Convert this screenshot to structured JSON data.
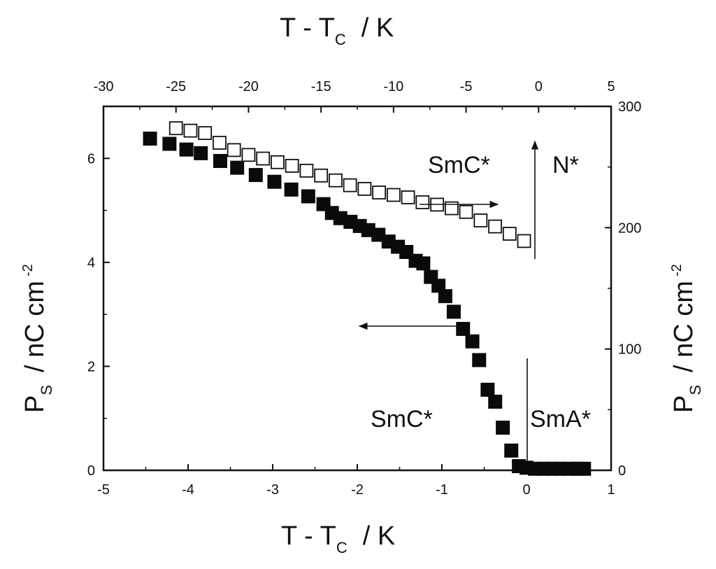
{
  "chart_data": {
    "type": "scatter",
    "title": "",
    "x_bottom": {
      "label_main": "T - T",
      "label_sub": "C",
      "label_unit": "/   K",
      "range": [
        -5,
        1
      ],
      "ticks": [
        "-5",
        "-4",
        "-3",
        "-2",
        "-1",
        "0",
        "1"
      ],
      "tick_values": [
        -5,
        -4,
        -3,
        -2,
        -1,
        0,
        1
      ]
    },
    "x_top": {
      "label_main": "T - T",
      "label_sub": "C",
      "label_unit": "/   K",
      "range": [
        -30,
        5
      ],
      "ticks": [
        "-30",
        "-25",
        "-20",
        "-15",
        "-10",
        "-5",
        "0",
        "5"
      ],
      "tick_values": [
        -30,
        -25,
        -20,
        -15,
        -10,
        -5,
        0,
        5
      ]
    },
    "y_left": {
      "label_main": "P",
      "label_sub": "S",
      "label_unit": "/   nC cm",
      "label_sup": "-2",
      "range": [
        0,
        7
      ],
      "ticks": [
        "0",
        "2",
        "4",
        "6"
      ],
      "tick_values": [
        0,
        2,
        4,
        6
      ]
    },
    "y_right": {
      "label_main": "P",
      "label_sub": "S",
      "label_unit": "/   nC cm",
      "label_sup": "-2",
      "range": [
        0,
        300
      ],
      "ticks": [
        "0",
        "100",
        "200",
        "300"
      ],
      "tick_values": [
        0,
        100,
        200,
        300
      ]
    },
    "series": [
      {
        "marker": "filled-square",
        "axes": "bottom-left",
        "x": [
          -4.45,
          -4.22,
          -4.02,
          -3.85,
          -3.62,
          -3.42,
          -3.2,
          -2.98,
          -2.78,
          -2.58,
          -2.4,
          -2.3,
          -2.2,
          -2.08,
          -1.97,
          -1.87,
          -1.75,
          -1.63,
          -1.52,
          -1.42,
          -1.31,
          -1.22,
          -1.13,
          -1.04,
          -0.96,
          -0.86,
          -0.75,
          -0.64,
          -0.56,
          -0.46,
          -0.37,
          -0.28,
          -0.18,
          -0.09,
          0.0,
          0.1,
          0.2,
          0.3,
          0.4,
          0.5,
          0.6,
          0.68
        ],
        "y": [
          6.38,
          6.28,
          6.17,
          6.1,
          5.95,
          5.82,
          5.68,
          5.55,
          5.4,
          5.27,
          5.12,
          4.95,
          4.85,
          4.78,
          4.7,
          4.62,
          4.53,
          4.4,
          4.3,
          4.2,
          4.03,
          3.98,
          3.72,
          3.55,
          3.35,
          3.05,
          2.72,
          2.48,
          2.12,
          1.55,
          1.32,
          0.82,
          0.38,
          0.08,
          0.05,
          0.03,
          0.03,
          0.03,
          0.03,
          0.03,
          0.03,
          0.03
        ]
      },
      {
        "marker": "open-square",
        "axes": "top-right",
        "x": [
          -25.0,
          -24.0,
          -23.0,
          -22.0,
          -21.0,
          -20.0,
          -19.0,
          -18.0,
          -17.0,
          -16.0,
          -15.0,
          -14.0,
          -13.0,
          -12.0,
          -11.0,
          -10.0,
          -9.0,
          -8.0,
          -7.0,
          -6.0,
          -5.0,
          -4.0,
          -3.0,
          -2.0,
          -1.0
        ],
        "y": [
          282,
          280,
          278,
          270,
          264,
          260,
          257,
          254,
          251,
          247,
          243,
          239,
          235,
          232,
          229,
          227,
          225,
          221,
          219,
          216,
          213,
          206,
          201,
          195,
          189
        ]
      }
    ],
    "annotations": {
      "smc_top": "SmC*",
      "nstar": "N*",
      "smc_bottom": "SmC*",
      "smastar": "SmA*"
    }
  }
}
